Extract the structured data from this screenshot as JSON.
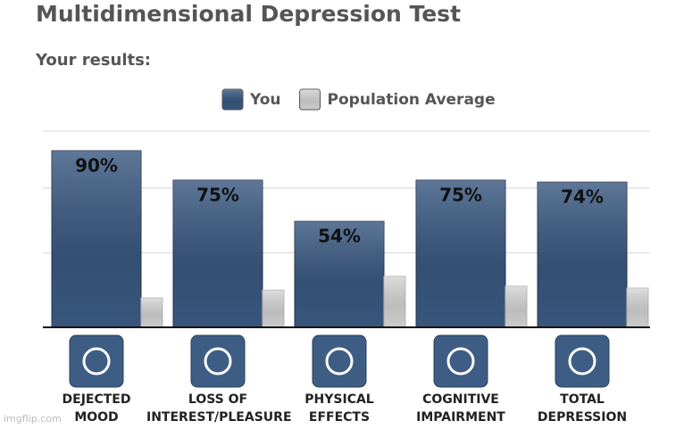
{
  "chart_data": {
    "type": "bar",
    "title": "Multidimensional Depression Test",
    "subtitle": "Your results:",
    "categories": [
      "DEJECTED\nMOOD",
      "LOSS OF\nINTEREST/PLEASURE",
      "PHYSICAL\nEFFECTS",
      "COGNITIVE\nIMPAIRMENT",
      "TOTAL\nDEPRESSION"
    ],
    "series": [
      {
        "name": "You",
        "color": "#3b5a82",
        "values": [
          90,
          75,
          54,
          75,
          74
        ],
        "value_labels": [
          "90%",
          "75%",
          "54%",
          "75%",
          "74%"
        ]
      },
      {
        "name": "Population Average",
        "color": "#d6d6d6",
        "values": [
          15,
          19,
          26,
          21,
          20
        ]
      }
    ],
    "ylim": [
      0,
      100
    ],
    "yticks": [
      38,
      71,
      100
    ],
    "grid": true,
    "legend": "top",
    "watermark": "imgflip.com"
  }
}
